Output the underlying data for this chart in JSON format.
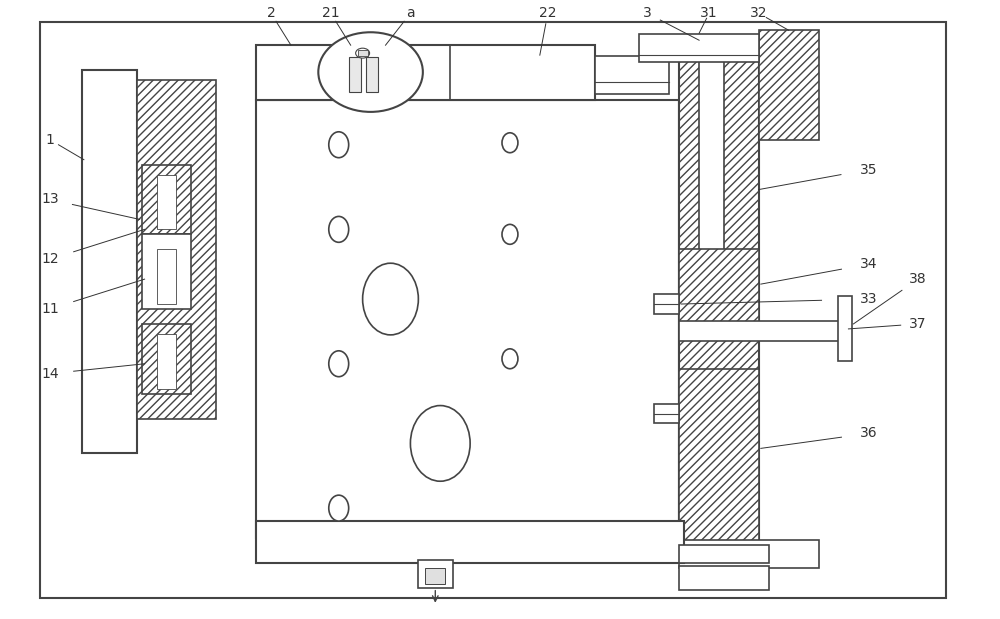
{
  "fig_width": 10.0,
  "fig_height": 6.19,
  "dpi": 100,
  "bg_color": "#ffffff",
  "lc": "#444444",
  "lc2": "#222222",
  "label_color": "#333333",
  "label_fs": 10
}
